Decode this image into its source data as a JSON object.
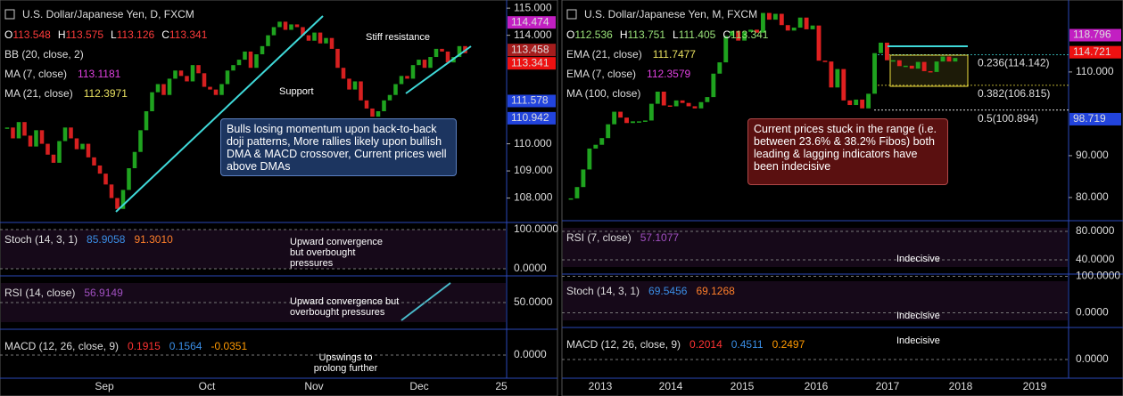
{
  "chart_data": [
    {
      "type": "candlestick",
      "title": "U.S. Dollar/Japanese Yen, D, FXCM",
      "ohlc_names": [
        "O",
        "H",
        "L",
        "C"
      ],
      "ohlc": [
        113.548,
        113.575,
        113.126,
        113.341
      ],
      "ohlc_color": "#ff3b3b",
      "overlays": [
        {
          "name": "BB (20, close, 2)"
        },
        {
          "name": "MA (7, close)",
          "value": 113.1181,
          "color": "#e040e0"
        },
        {
          "name": "MA (21, close)",
          "value": 112.3971,
          "color": "#e8e060"
        }
      ],
      "values": [
        110.6,
        110.2,
        110.8,
        110.3,
        109.9,
        110.5,
        110.0,
        109.6,
        109.3,
        110.1,
        110.6,
        110.2,
        109.8,
        110.0,
        109.5,
        109.2,
        108.9,
        108.5,
        108.0,
        107.6,
        108.3,
        109.1,
        109.7,
        110.5,
        111.2,
        111.9,
        112.2,
        111.8,
        112.4,
        112.7,
        112.5,
        112.3,
        112.9,
        112.6,
        112.1,
        112.0,
        111.8,
        112.2,
        112.7,
        112.9,
        113.1,
        113.4,
        112.8,
        113.3,
        113.6,
        114.0,
        114.3,
        114.5,
        114.2,
        114.4,
        114.3,
        114.0,
        113.8,
        114.1,
        113.7,
        113.9,
        113.5,
        112.8,
        112.4,
        112.0,
        112.3,
        111.6,
        111.3,
        111.0,
        111.2,
        111.6,
        111.8,
        112.2,
        112.5,
        112.4,
        112.9,
        113.1,
        112.8,
        113.2,
        113.5,
        113.4,
        113.0,
        113.2,
        113.6,
        113.341
      ],
      "colors": {
        "up": "#1fa31f",
        "down": "#d62020"
      },
      "ylim": [
        107.1,
        115.3
      ],
      "yticks": [
        {
          "value": 108,
          "label": "108.000"
        },
        {
          "value": 109,
          "label": "109.000"
        },
        {
          "value": 110,
          "label": "110.000"
        },
        {
          "value": 114,
          "label": "114.000"
        },
        {
          "value": 115,
          "label": "115.000"
        }
      ],
      "price_labels": [
        {
          "value": 114.474,
          "color": "#c21fc2"
        },
        {
          "value": 113.458,
          "color": "#a51d1d"
        },
        {
          "value": 113.341,
          "color": "#ee1111"
        },
        {
          "value": 111.578,
          "color": "#2244dd"
        },
        {
          "value": 110.942,
          "color": "#2244dd"
        }
      ],
      "annotations": [
        "Stiff resistance",
        "Support",
        "Bulls losing momentum upon back-to-back doji patterns, More rallies likely upon bullish DMA & MACD crossover, Current prices well above DMAs"
      ],
      "xlabels": [
        "Sep",
        "Oct",
        "Nov",
        "Dec",
        "25"
      ],
      "subpanels": [
        {
          "name": "Stoch (14, 3, 1)",
          "readings": [
            85.9058,
            {
              "value": 91.301,
              "label": "91.3010"
            }
          ],
          "reading_colors": [
            "#3a8ee6",
            "#ff7f2a"
          ],
          "ylim": [
            -18,
            118
          ],
          "yticks": [
            {
              "value": 100,
              "label": "100.0000"
            },
            {
              "value": 0,
              "label": "0.0000"
            }
          ],
          "annotations": [
            "Upward convergence but overbought pressures"
          ]
        },
        {
          "name": "RSI (14, close)",
          "readings": [
            56.9149
          ],
          "reading_colors": [
            "#a050c0"
          ],
          "ylim": [
            20,
            80
          ],
          "yticks": [
            {
              "value": 50,
              "label": "50.0000"
            }
          ],
          "annotations": [
            "Upward convergence but overbought pressures"
          ]
        },
        {
          "name": "MACD (12, 26, close, 9)",
          "readings": [
            0.1915,
            0.1564,
            -0.0351
          ],
          "reading_colors": [
            "#ff3333",
            "#3a8ee6",
            "#ff9900"
          ],
          "ylim": [
            -0.45,
            0.5
          ],
          "yticks": [
            {
              "value": 0,
              "label": "0.0000"
            }
          ],
          "annotations": [
            "Upswings to prolong further"
          ]
        }
      ]
    },
    {
      "type": "candlestick",
      "title": "U.S. Dollar/Japanese Yen, M, FXCM",
      "ohlc_names": [
        "O",
        "H",
        "L",
        "C"
      ],
      "ohlc": [
        112.536,
        113.751,
        111.405,
        113.341
      ],
      "ohlc_color": "#9be37a",
      "overlays": [
        {
          "name": "EMA (21, close)",
          "value": 111.7477,
          "color": "#e8e060"
        },
        {
          "name": "EMA (7, close)",
          "value": 112.3579,
          "color": "#e040e0"
        },
        {
          "name": "MA (100, close)"
        }
      ],
      "values": [
        79.8,
        82.5,
        86.7,
        91.7,
        92.6,
        94.2,
        97.5,
        100.5,
        99.1,
        97.8,
        98.2,
        98.2,
        98.4,
        102.4,
        105.3,
        102.0,
        101.8,
        103.2,
        102.6,
        101.8,
        101.3,
        102.8,
        104.0,
        109.6,
        112.3,
        118.6,
        119.8,
        117.5,
        119.6,
        120.1,
        119.4,
        124.1,
        122.5,
        123.9,
        121.2,
        119.9,
        120.6,
        123.0,
        120.2,
        121.1,
        112.7,
        112.5,
        106.3,
        110.7,
        103.2,
        102.1,
        103.4,
        101.3,
        104.8,
        114.5,
        117.0,
        112.8,
        112.8,
        111.4,
        111.5,
        110.8,
        112.4,
        110.2,
        110.0,
        112.5,
        113.7,
        112.5,
        113.341
      ],
      "colors": {
        "up": "#1fa31f",
        "down": "#e02020"
      },
      "ylim": [
        75.1,
        127.2
      ],
      "yticks": [
        {
          "value": 80,
          "label": "80.000"
        },
        {
          "value": 90,
          "label": "90.000"
        },
        {
          "value": 110,
          "label": "110.000"
        }
      ],
      "price_labels": [
        {
          "value": 118.796,
          "color": "#c21fc2"
        },
        {
          "value": 114.721,
          "color": "#ee1111"
        },
        {
          "value": 98.719,
          "color": "#2244dd"
        }
      ],
      "fib_levels": [
        {
          "label": "0.236(114.142)",
          "value": 114.142,
          "color": "#3fd9d9"
        },
        {
          "label": "0.382(106.815)",
          "value": 106.815,
          "color": "#f0e040"
        },
        {
          "label": "0.5(100.894)",
          "value": 100.894,
          "color": "#ffffff"
        }
      ],
      "annotations": [
        "Current prices stuck in the range (i.e. between 23.6% & 38.2% Fibos) both leading & lagging indicators have been indecisive"
      ],
      "xlabels": [
        "2013",
        "2014",
        "2015",
        "2016",
        "2017",
        "2018",
        "2019"
      ],
      "subpanels": [
        {
          "name": "RSI (7, close)",
          "readings": [
            57.1077
          ],
          "reading_colors": [
            "#a050c0"
          ],
          "ylim": [
            20,
            95
          ],
          "yticks": [
            {
              "value": 80,
              "label": "80.0000"
            },
            {
              "value": 40,
              "label": "40.0000"
            }
          ],
          "annotations": [
            "Indecisive"
          ]
        },
        {
          "name": "Stoch (14, 3, 1)",
          "readings": [
            69.5456,
            69.1268
          ],
          "reading_colors": [
            "#3a8ee6",
            "#ff7f2a"
          ],
          "ylim": [
            -40,
            106
          ],
          "yticks": [
            {
              "value": 100,
              "label": "100.0000"
            },
            {
              "value": 0,
              "label": "0.0000"
            }
          ],
          "annotations": [
            "Indecisive"
          ]
        },
        {
          "name": "MACD (12, 26, close, 9)",
          "readings": [
            0.2014,
            0.4511,
            0.2497
          ],
          "reading_colors": [
            "#ff3333",
            "#3a8ee6",
            "#ff9900"
          ],
          "ylim": [
            -0.48,
            0.82
          ],
          "yticks": [
            {
              "value": 0,
              "label": "0.0000"
            }
          ],
          "annotations": [
            "Indecisive"
          ]
        }
      ]
    }
  ]
}
